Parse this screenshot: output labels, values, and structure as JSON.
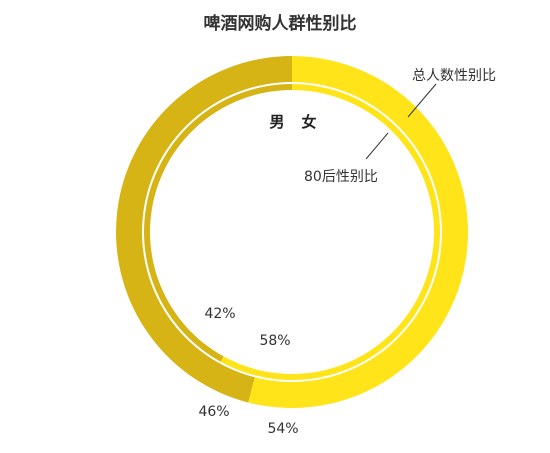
{
  "chart_data": {
    "type": "pie",
    "title": "啤酒网购人群性别比",
    "legend": {
      "male": "男",
      "female": "女"
    },
    "series": [
      {
        "name": "总人数性别比",
        "values": [
          46,
          54
        ],
        "labels": [
          "46%",
          "54%"
        ]
      },
      {
        "name": "80后性别比",
        "values": [
          42,
          58
        ],
        "labels": [
          "42%",
          "58%"
        ]
      }
    ],
    "categories": [
      "男",
      "女"
    ],
    "colors": {
      "male": "#D6B415",
      "female": "#FFE41A",
      "divider": "#ffffff",
      "text": "#333333",
      "leader": "#333333"
    }
  }
}
